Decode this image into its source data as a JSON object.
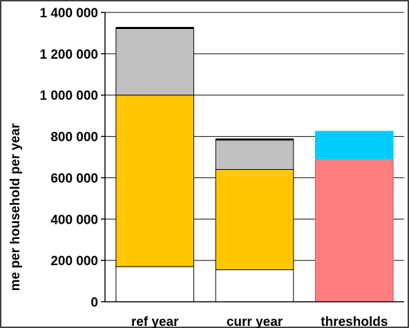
{
  "chart_data": {
    "type": "bar",
    "stacked": true,
    "title": "",
    "xlabel": "",
    "ylabel": "me per household per year",
    "ylim": [
      0,
      1400000
    ],
    "ytick_step": 200000,
    "yticks": [
      "0",
      "200 000",
      "400 000",
      "600 000",
      "800 000",
      "1 000 000",
      "1 200 000",
      "1 400 000"
    ],
    "grid": true,
    "legend": "none",
    "categories": [
      "ref year",
      "curr year",
      "thresholds"
    ],
    "series": [
      {
        "color": "#FFFFFF",
        "values": [
          170000,
          155000,
          0
        ]
      },
      {
        "color": "#FFC800",
        "values": [
          830000,
          485000,
          0
        ]
      },
      {
        "color": "#C0C0C0",
        "values": [
          325000,
          145000,
          0
        ]
      },
      {
        "color": "#FF7F7F",
        "values": [
          0,
          0,
          690000
        ]
      },
      {
        "color": "#00CCFF",
        "values": [
          0,
          0,
          135000
        ]
      }
    ]
  }
}
